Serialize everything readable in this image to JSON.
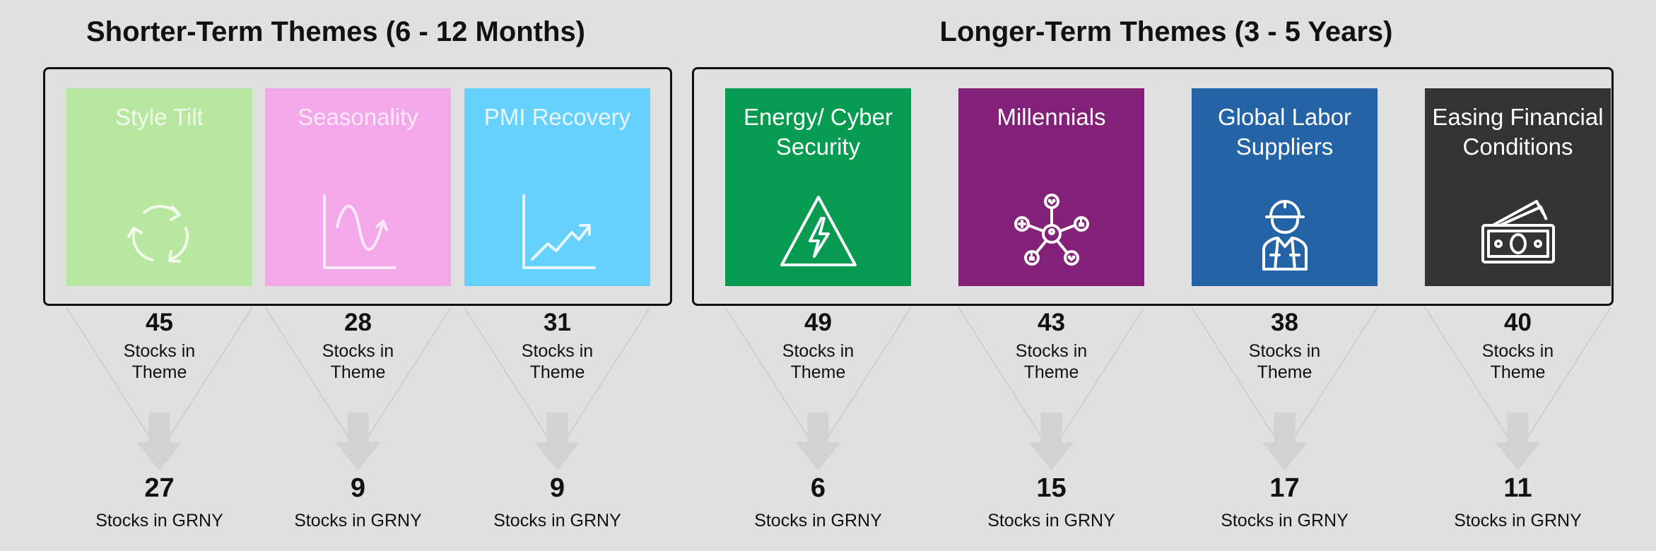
{
  "groups": {
    "short": {
      "title": "Shorter-Term Themes (6 - 12 Months)"
    },
    "long": {
      "title": "Longer-Term Themes (3 - 5 Years)"
    }
  },
  "themes": [
    {
      "label": "Style Tilt",
      "icon": "cycle-arrows-icon",
      "bg": "#b8e7a1",
      "fg": "#f2fbe9",
      "stocks_in_theme": "45",
      "stocks_in_theme_label": "Stocks in Theme",
      "stocks_in_grny": "27",
      "stocks_in_grny_label": "Stocks in GRNY"
    },
    {
      "label": "Seasonality",
      "icon": "wave-chart-icon",
      "bg": "#f3a8ea",
      "fg": "#fbe8f8",
      "stocks_in_theme": "28",
      "stocks_in_theme_label": "Stocks in Theme",
      "stocks_in_grny": "9",
      "stocks_in_grny_label": "Stocks in GRNY"
    },
    {
      "label": "PMI Recovery",
      "icon": "line-chart-up-icon",
      "bg": "#67d1fd",
      "fg": "#e6f7ff",
      "stocks_in_theme": "31",
      "stocks_in_theme_label": "Stocks in Theme",
      "stocks_in_grny": "9",
      "stocks_in_grny_label": "Stocks in GRNY"
    },
    {
      "label": "Energy/ Cyber Security",
      "icon": "warning-lightning-icon",
      "bg": "#079b52",
      "fg": "#ffffff",
      "stocks_in_theme": "49",
      "stocks_in_theme_label": "Stocks in Theme",
      "stocks_in_grny": "6",
      "stocks_in_grny_label": "Stocks in GRNY"
    },
    {
      "label": "Millennials",
      "icon": "social-network-icon",
      "bg": "#822177",
      "fg": "#ffffff",
      "stocks_in_theme": "43",
      "stocks_in_theme_label": "Stocks in Theme",
      "stocks_in_grny": "15",
      "stocks_in_grny_label": "Stocks in GRNY"
    },
    {
      "label": "Global Labor Suppliers",
      "icon": "construction-worker-icon",
      "bg": "#2464a6",
      "fg": "#ffffff",
      "stocks_in_theme": "38",
      "stocks_in_theme_label": "Stocks in Theme",
      "stocks_in_grny": "17",
      "stocks_in_grny_label": "Stocks in GRNY"
    },
    {
      "label": "Easing Financial Conditions",
      "icon": "cash-bills-icon",
      "bg": "#333333",
      "fg": "#ffffff",
      "stocks_in_theme": "40",
      "stocks_in_theme_label": "Stocks in Theme",
      "stocks_in_grny": "11",
      "stocks_in_grny_label": "Stocks in GRNY"
    }
  ]
}
